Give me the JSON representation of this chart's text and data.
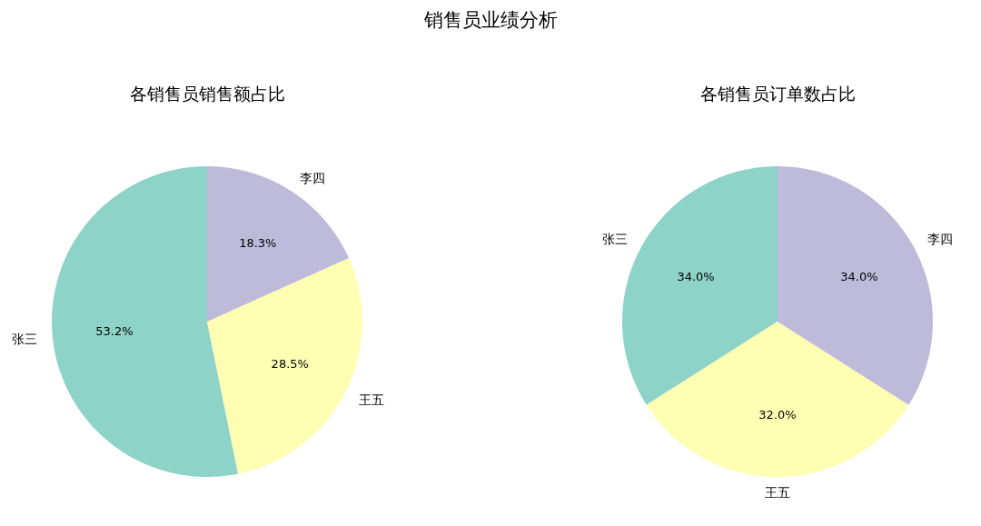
{
  "chart_data": [
    {
      "type": "other",
      "title": "销售员业绩分析"
    },
    {
      "type": "pie",
      "title": "各销售员销售额占比",
      "categories": [
        "张三",
        "王五",
        "李四"
      ],
      "values": [
        53.2,
        28.5,
        18.3
      ],
      "colors": [
        "#8dd3c7",
        "#ffffb3",
        "#bebada"
      ],
      "value_labels": [
        "53.2%",
        "28.5%",
        "18.3%"
      ]
    },
    {
      "type": "pie",
      "title": "各销售员订单数占比",
      "categories": [
        "张三",
        "王五",
        "李四"
      ],
      "values": [
        34.0,
        32.0,
        34.0
      ],
      "colors": [
        "#8dd3c7",
        "#ffffb3",
        "#bebada"
      ],
      "value_labels": [
        "34.0%",
        "32.0%",
        "34.0%"
      ]
    }
  ]
}
